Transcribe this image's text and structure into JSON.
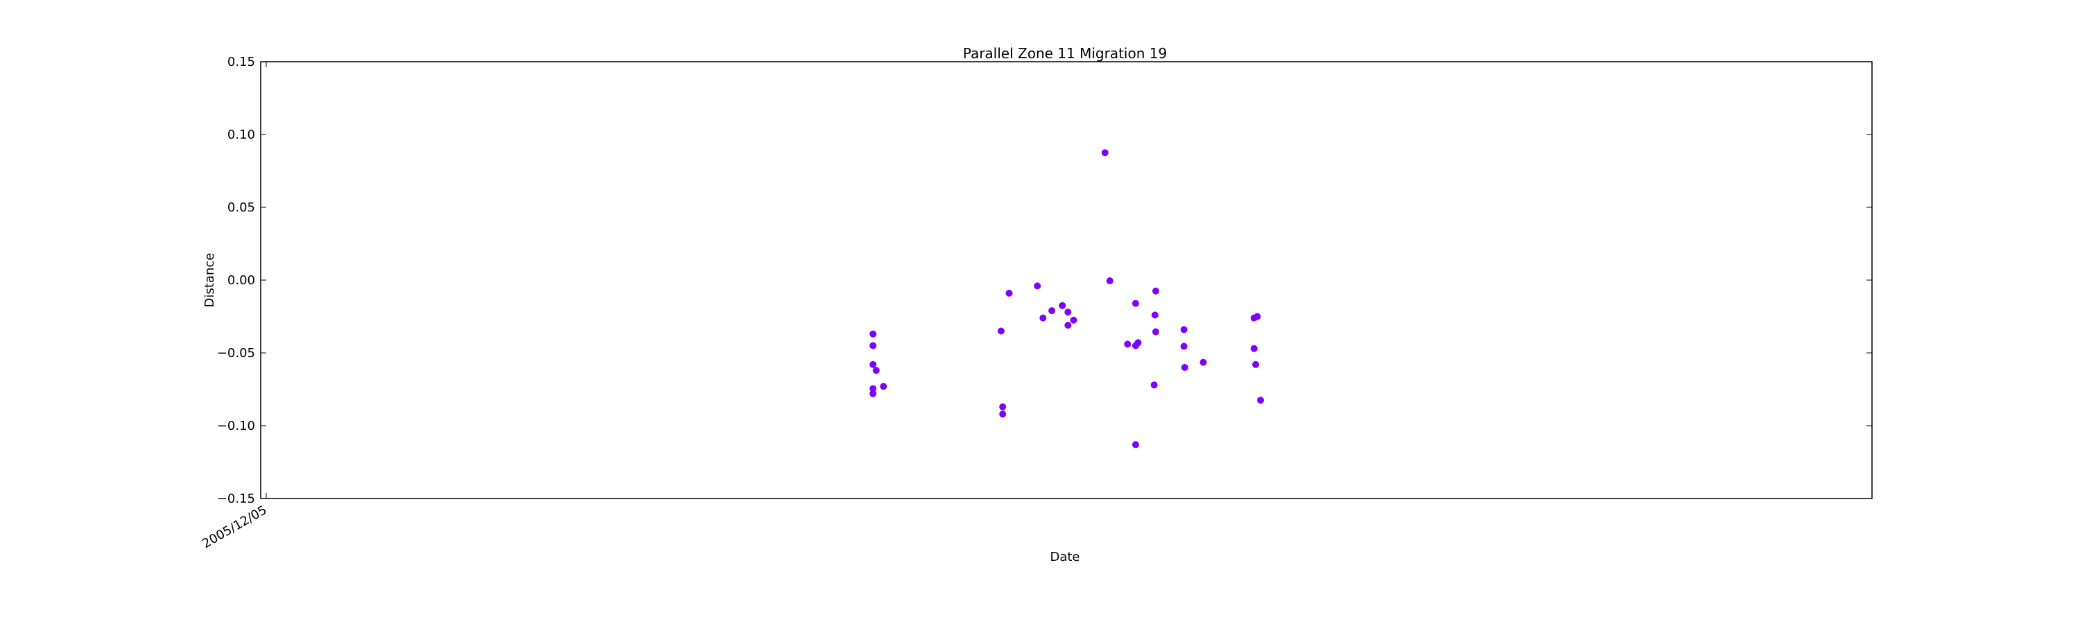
{
  "chart_data": {
    "type": "scatter",
    "title": "Parallel Zone 11 Migration 19",
    "xlabel": "Date",
    "ylabel": "Distance",
    "ylim": [
      -0.15,
      0.15
    ],
    "yticks": [
      0.15,
      0.1,
      0.05,
      0.0,
      -0.05,
      -0.1,
      -0.15
    ],
    "ytick_labels": [
      "0.15",
      "0.10",
      "0.05",
      "0.00",
      "−0.05",
      "−0.10",
      "−0.15"
    ],
    "xtick_labels": [
      "2005/12/05"
    ],
    "grid": false,
    "marker_color": "#7f00ff",
    "series": [
      {
        "points": [
          {
            "x": 0.38,
            "y": -0.0745
          },
          {
            "x": 0.38,
            "y": -0.078
          },
          {
            "x": 0.38,
            "y": -0.058
          },
          {
            "x": 0.38,
            "y": -0.045
          },
          {
            "x": 0.38,
            "y": -0.037
          },
          {
            "x": 0.382,
            "y": -0.062
          },
          {
            "x": 0.3865,
            "y": -0.073
          },
          {
            "x": 0.4595,
            "y": -0.035
          },
          {
            "x": 0.4605,
            "y": -0.087
          },
          {
            "x": 0.4605,
            "y": -0.092
          },
          {
            "x": 0.4645,
            "y": -0.009
          },
          {
            "x": 0.482,
            "y": -0.004
          },
          {
            "x": 0.4855,
            "y": -0.026
          },
          {
            "x": 0.491,
            "y": -0.021
          },
          {
            "x": 0.4975,
            "y": -0.0175
          },
          {
            "x": 0.501,
            "y": -0.031
          },
          {
            "x": 0.501,
            "y": -0.022
          },
          {
            "x": 0.5045,
            "y": -0.0275
          },
          {
            "x": 0.524,
            "y": 0.0875
          },
          {
            "x": 0.527,
            "y": -0.0005
          },
          {
            "x": 0.538,
            "y": -0.044
          },
          {
            "x": 0.543,
            "y": -0.045
          },
          {
            "x": 0.543,
            "y": -0.016
          },
          {
            "x": 0.543,
            "y": -0.113
          },
          {
            "x": 0.5445,
            "y": -0.043
          },
          {
            "x": 0.5545,
            "y": -0.072
          },
          {
            "x": 0.555,
            "y": -0.024
          },
          {
            "x": 0.5555,
            "y": -0.0355
          },
          {
            "x": 0.5555,
            "y": -0.0075
          },
          {
            "x": 0.573,
            "y": -0.034
          },
          {
            "x": 0.573,
            "y": -0.0455
          },
          {
            "x": 0.5735,
            "y": -0.06
          },
          {
            "x": 0.585,
            "y": -0.0565
          },
          {
            "x": 0.6165,
            "y": -0.026
          },
          {
            "x": 0.6165,
            "y": -0.047
          },
          {
            "x": 0.6175,
            "y": -0.058
          },
          {
            "x": 0.6185,
            "y": -0.025
          },
          {
            "x": 0.6205,
            "y": -0.0825
          }
        ]
      }
    ]
  }
}
